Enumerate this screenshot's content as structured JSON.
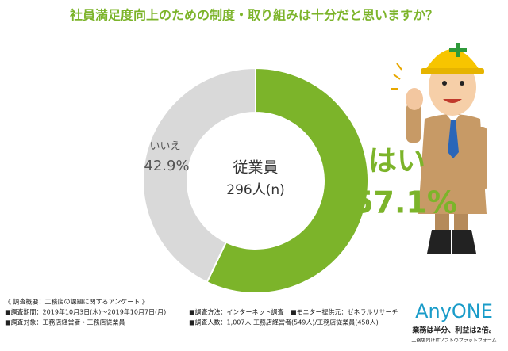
{
  "chart_data": {
    "type": "donut",
    "title": "社員満足度向上のための制度・取り組みは十分だと思いますか？",
    "center_title": "従業員",
    "center_subtitle": "296人(n)",
    "categories": [
      "はい",
      "いいえ"
    ],
    "values": [
      57.1,
      42.9
    ],
    "value_labels": [
      "57.1%",
      "42.9%"
    ],
    "colors": [
      "#7cb42a",
      "#d9d9d9"
    ]
  },
  "footer": {
    "heading": "《 調査概要：工務店の課題に関するアンケート 》",
    "period": "■調査期間：2019年10月3日(木)～2019年10月7日(月)",
    "target": "■調査対象：工務店経営者・工務店従業員",
    "method": "■調査方法：インターネット調査",
    "provider": "■モニター提供元：ゼネラルリサーチ",
    "count": "■調査人数：1,007人 工務店経営者(549人)/工務店従業員(458人)"
  },
  "logo": {
    "name": "AnyONE",
    "tagline": "業務は半分、利益は2倍。",
    "subline": "工務店向けITソフトのプラットフォーム"
  }
}
